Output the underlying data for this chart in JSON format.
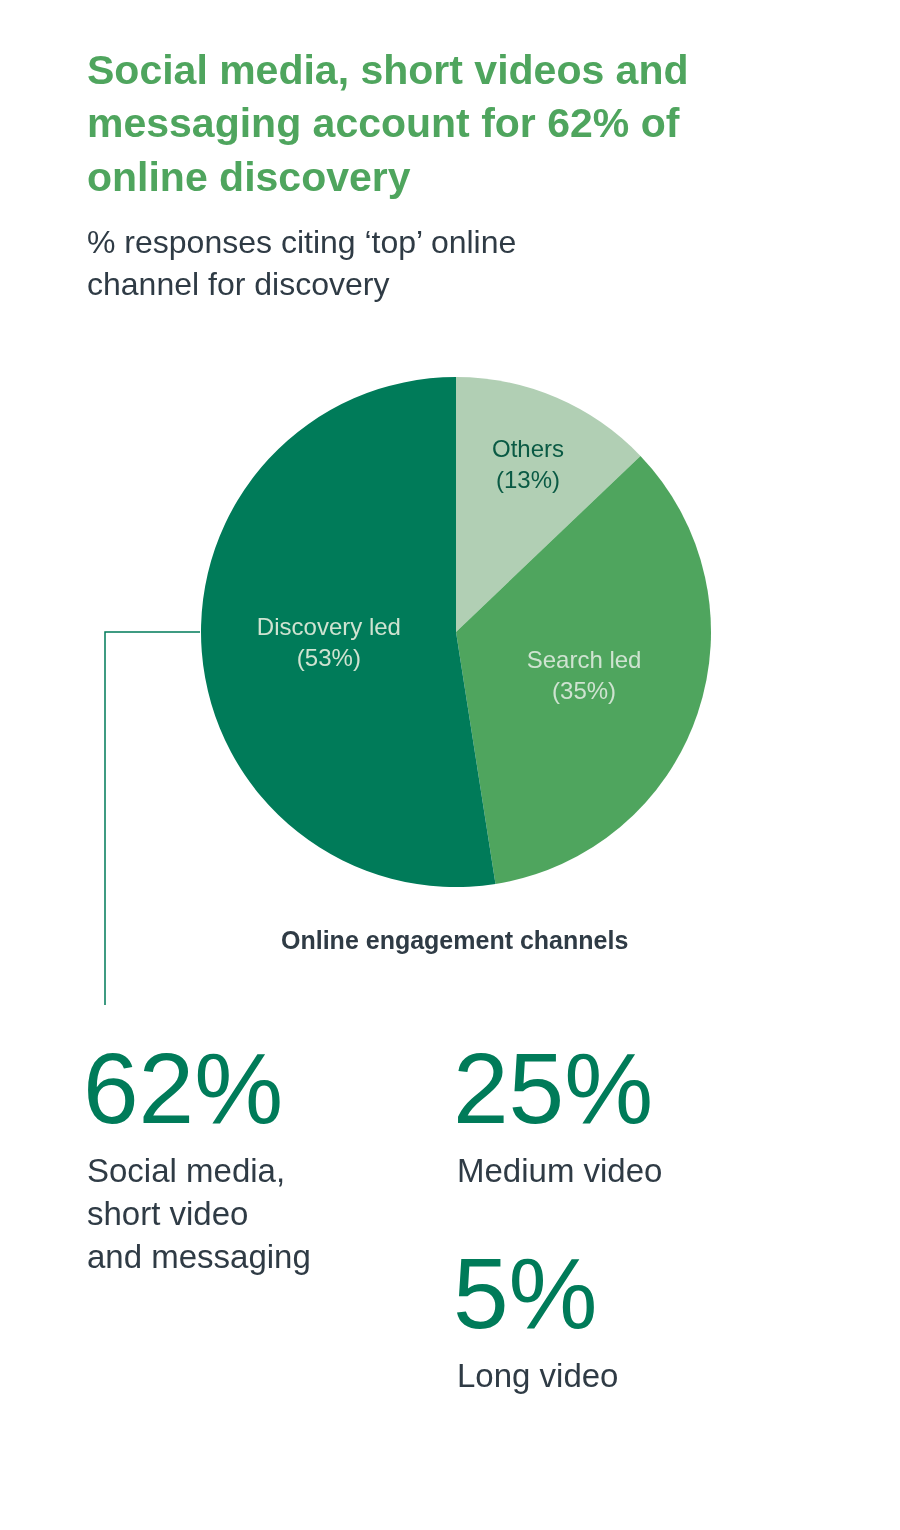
{
  "chart_data": [
    {
      "type": "pie",
      "title": "Social media, short videos and messaging account for 62% of online discovery",
      "subtitle": "% responses citing ‘top’ online channel for discovery",
      "categories": [
        "Others",
        "Search led",
        "Discovery led"
      ],
      "values": [
        13,
        35,
        53
      ],
      "value_labels": [
        "(13%)",
        "(35%)",
        "(53%)"
      ],
      "colors": [
        "#b1cfb4",
        "#4fa55e",
        "#007b59"
      ]
    },
    {
      "type": "other",
      "title": "Online engagement channels",
      "annotations": [
        "62%",
        "Social media, short video and messaging",
        "25%",
        "Medium video",
        "5%",
        "Long video"
      ]
    }
  ]
}
